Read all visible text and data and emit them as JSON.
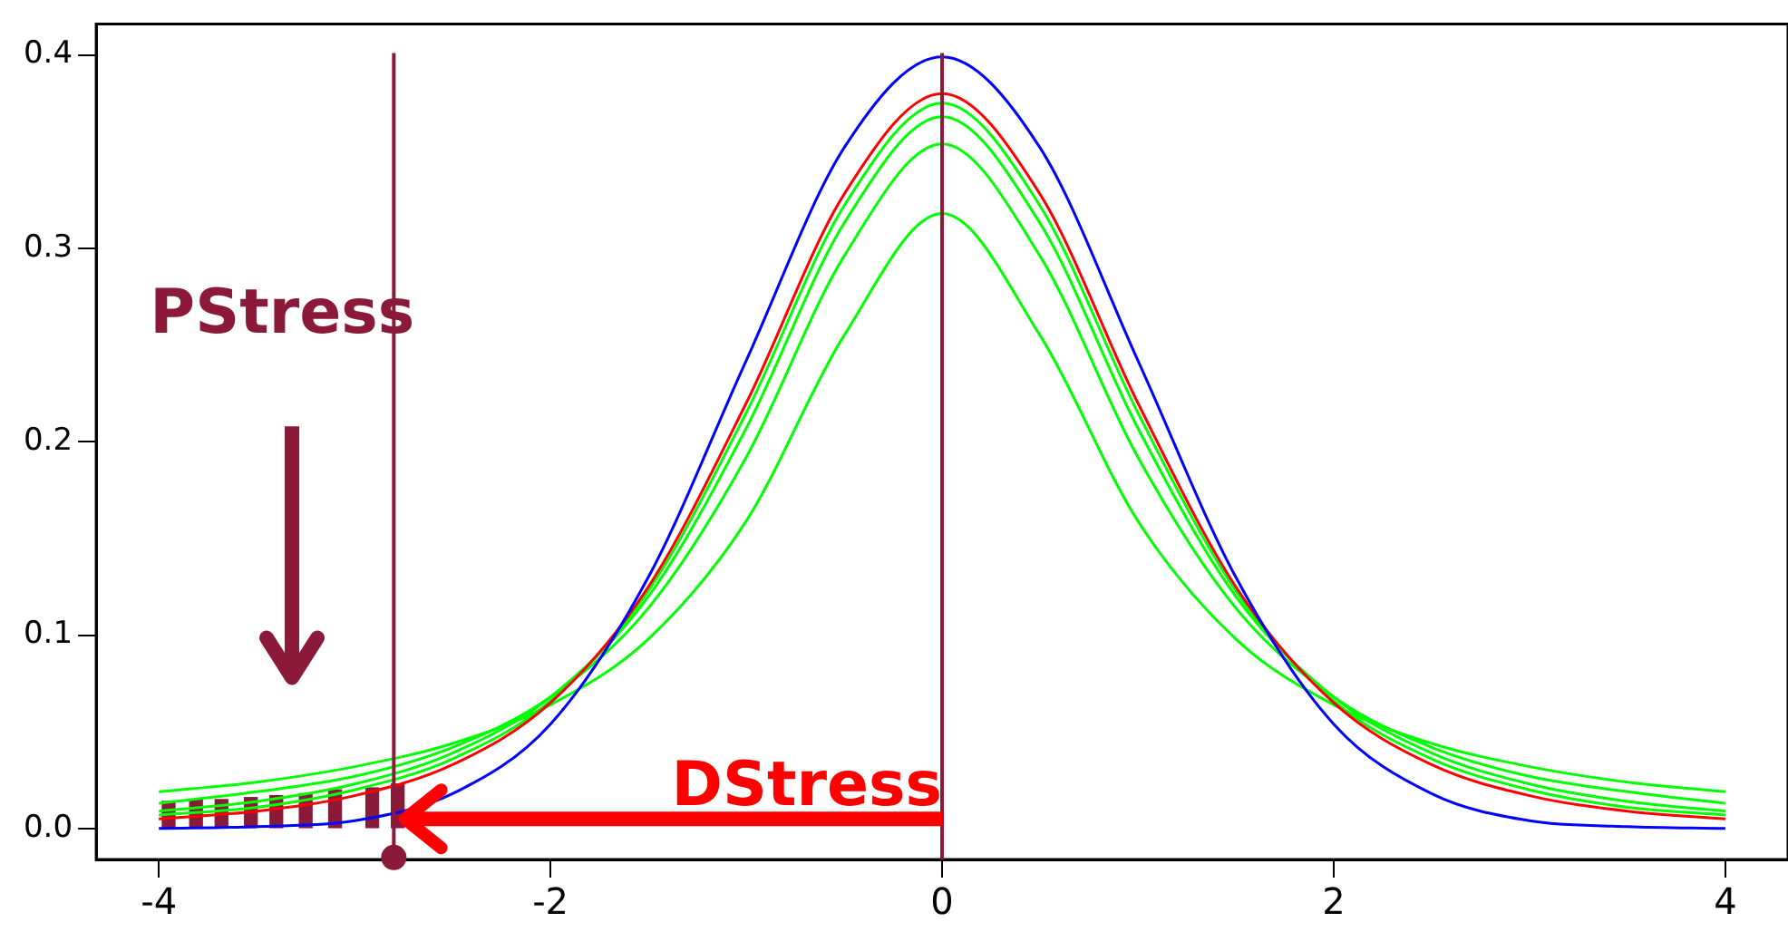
{
  "chart_data": {
    "type": "line",
    "x": [
      -4,
      -3.5,
      -3,
      -2.5,
      -2,
      -1.5,
      -1,
      -0.5,
      0,
      0.5,
      1,
      1.5,
      2,
      2.5,
      3,
      3.5,
      4
    ],
    "series": [
      {
        "color": "#0000ff",
        "values": [
          0.0,
          0.001,
          0.004,
          0.018,
          0.054,
          0.13,
          0.242,
          0.352,
          0.399,
          0.352,
          0.242,
          0.13,
          0.054,
          0.018,
          0.004,
          0.001,
          0.0
        ]
      },
      {
        "color": "#ff0000",
        "values": [
          0.005,
          0.009,
          0.017,
          0.033,
          0.065,
          0.125,
          0.22,
          0.328,
          0.38,
          0.328,
          0.22,
          0.125,
          0.065,
          0.033,
          0.017,
          0.009,
          0.005
        ]
      },
      {
        "color": "#00ff00",
        "values": [
          0.007,
          0.011,
          0.02,
          0.036,
          0.066,
          0.123,
          0.215,
          0.322,
          0.375,
          0.322,
          0.215,
          0.123,
          0.066,
          0.036,
          0.02,
          0.011,
          0.007
        ]
      },
      {
        "color": "#00ff00",
        "values": [
          0.009,
          0.014,
          0.023,
          0.039,
          0.068,
          0.12,
          0.207,
          0.313,
          0.368,
          0.313,
          0.207,
          0.12,
          0.068,
          0.039,
          0.023,
          0.014,
          0.009
        ]
      },
      {
        "color": "#00ff00",
        "values": [
          0.013,
          0.019,
          0.027,
          0.042,
          0.068,
          0.114,
          0.192,
          0.296,
          0.354,
          0.296,
          0.192,
          0.114,
          0.068,
          0.042,
          0.027,
          0.019,
          0.013
        ]
      },
      {
        "color": "#00ff00",
        "values": [
          0.019,
          0.024,
          0.032,
          0.044,
          0.064,
          0.098,
          0.159,
          0.255,
          0.318,
          0.255,
          0.159,
          0.098,
          0.064,
          0.044,
          0.032,
          0.024,
          0.019
        ]
      },
      {
        "type": "bar",
        "color": "#8b1a3a",
        "x": [
          -3.95,
          -3.81,
          -3.68,
          -3.53,
          -3.4,
          -3.25,
          -3.1,
          -2.91,
          -2.78
        ],
        "values": [
          0.014,
          0.015,
          0.015,
          0.016,
          0.017,
          0.018,
          0.02,
          0.021,
          0.023
        ]
      }
    ],
    "xlim": [
      -4.32,
      4.32
    ],
    "xticks": [
      -4,
      -2,
      0,
      2,
      4
    ],
    "ylim": [
      -0.016,
      0.416
    ],
    "yticks": [
      {
        "value": 0,
        "label": "0.0"
      },
      0.1,
      0.2,
      0.3,
      0.4
    ],
    "ref_lines": [
      {
        "axis": "x",
        "value": -2.8,
        "color": "#8b1a3a"
      },
      {
        "axis": "x",
        "value": 0,
        "color": "#8b1a3a"
      }
    ],
    "annotations": [
      "PStress",
      "DStress"
    ],
    "grid": false,
    "legend": false,
    "marker": "none",
    "line_style": "solid"
  }
}
